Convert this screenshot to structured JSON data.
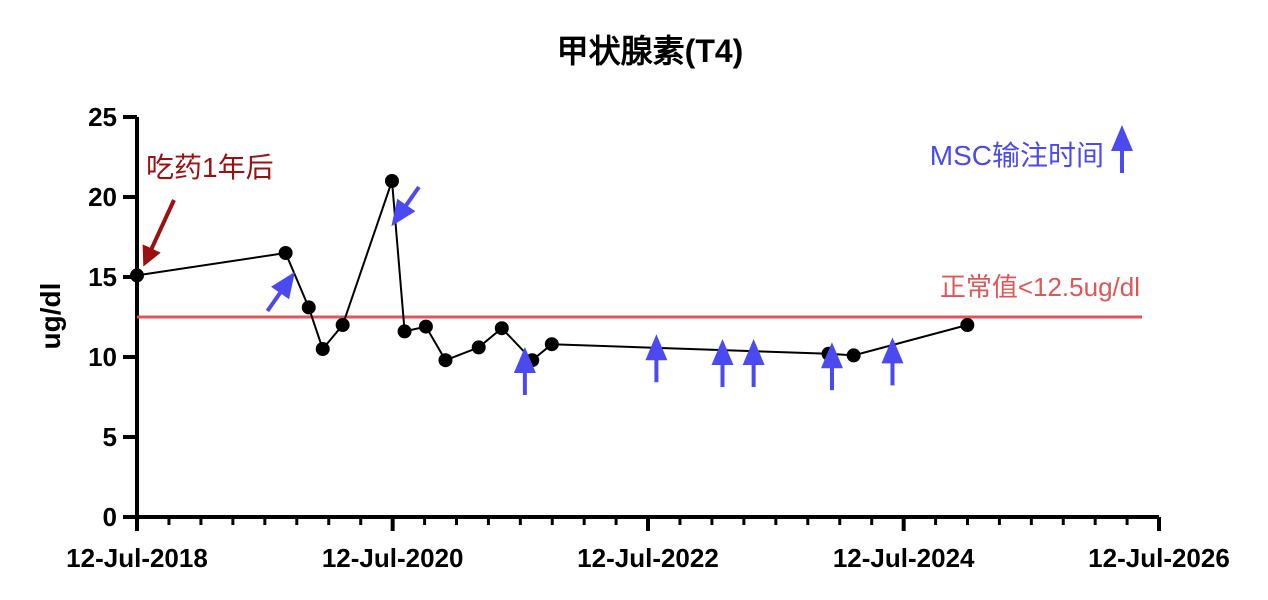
{
  "chart_data": {
    "type": "line",
    "title": "甲状腺素(T4)",
    "ylabel": "ug/dl",
    "xlabel": "",
    "ylim": [
      0,
      25
    ],
    "y_ticks": [
      0,
      5,
      10,
      15,
      20,
      25
    ],
    "y_tick_labels": [
      "0",
      "5",
      "10",
      "15",
      "20",
      "25"
    ],
    "x_range": [
      "2018-07-12",
      "2026-07-12"
    ],
    "x_tick_labels": [
      {
        "date": "2018-07-12",
        "label": "12-Jul-2018"
      },
      {
        "date": "2020-07-12",
        "label": "12-Jul-2020"
      },
      {
        "date": "2022-07-12",
        "label": "12-Jul-2022"
      },
      {
        "date": "2024-07-12",
        "label": "12-Jul-2024"
      },
      {
        "date": "2026-07-12",
        "label": "12-Jul-2026"
      }
    ],
    "x_minor_ticks_per_major": 8,
    "grid": false,
    "series": [
      {
        "color": "#000000",
        "points": [
          {
            "x": "2018-07-12",
            "y": 15.1
          },
          {
            "x": "2019-09-10",
            "y": 16.5
          },
          {
            "x": "2019-11-15",
            "y": 13.1
          },
          {
            "x": "2019-12-25",
            "y": 10.5
          },
          {
            "x": "2020-02-20",
            "y": 12.0
          },
          {
            "x": "2020-07-10",
            "y": 21.0
          },
          {
            "x": "2020-08-15",
            "y": 11.6
          },
          {
            "x": "2020-10-15",
            "y": 11.9
          },
          {
            "x": "2020-12-10",
            "y": 9.8
          },
          {
            "x": "2021-03-15",
            "y": 10.6
          },
          {
            "x": "2021-05-20",
            "y": 11.8
          },
          {
            "x": "2021-08-15",
            "y": 9.8
          },
          {
            "x": "2021-10-10",
            "y": 10.8
          },
          {
            "x": "2023-12-10",
            "y": 10.2
          },
          {
            "x": "2024-02-20",
            "y": 10.1
          },
          {
            "x": "2025-01-10",
            "y": 12.0
          }
        ]
      }
    ],
    "reference_line": {
      "y": 12.5,
      "label": "正常值<12.5ug/dl",
      "color": "#e05555"
    },
    "start_annotation": {
      "text": "吃药1年后",
      "color": "#9b1010"
    },
    "infusion_legend": {
      "text": "MSC输注时间",
      "color": "#4a4af0"
    },
    "infusion_arrows": [
      {
        "x": "2019-08-25",
        "y": 14.0,
        "dir": "up-right"
      },
      {
        "x": "2020-08-20",
        "y": 19.5,
        "dir": "down-left"
      },
      {
        "x": "2021-07-25",
        "y": 9.0,
        "dir": "up"
      },
      {
        "x": "2022-08-05",
        "y": 9.8,
        "dir": "up"
      },
      {
        "x": "2023-02-10",
        "y": 9.5,
        "dir": "up"
      },
      {
        "x": "2023-05-10",
        "y": 9.5,
        "dir": "up"
      },
      {
        "x": "2023-12-20",
        "y": 9.3,
        "dir": "up"
      },
      {
        "x": "2024-06-10",
        "y": 9.6,
        "dir": "up"
      }
    ]
  }
}
